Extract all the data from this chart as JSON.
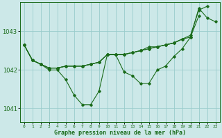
{
  "title": "Graphe pression niveau de la mer (hPa)",
  "background_color": "#cce8e8",
  "grid_color": "#99cccc",
  "line_color": "#1a6b1a",
  "xlim": [
    -0.5,
    23.5
  ],
  "ylim": [
    1040.65,
    1043.75
  ],
  "yticks": [
    1041,
    1042,
    1043
  ],
  "ylabel_pad": 2,
  "series": [
    [
      1042.65,
      1042.25,
      1042.15,
      1042.0,
      1042.0,
      1041.75,
      1041.35,
      1041.1,
      1041.1,
      1041.45,
      1042.4,
      1042.4,
      1041.95,
      1041.85,
      1041.65,
      1041.65,
      1042.0,
      1042.1,
      1042.35,
      1042.55,
      1042.85,
      1043.6,
      1043.35,
      1043.25
    ],
    [
      1042.65,
      1042.25,
      1042.15,
      1042.05,
      1042.05,
      1042.1,
      1042.1,
      1042.1,
      1042.15,
      1042.2,
      1042.4,
      1042.4,
      1042.4,
      1042.45,
      1042.5,
      1042.6,
      1042.6,
      1042.65,
      1042.7,
      1042.8,
      null,
      null,
      null,
      null
    ],
    [
      1042.65,
      1042.25,
      1042.15,
      1042.05,
      1042.05,
      1042.1,
      1042.1,
      1042.1,
      1042.15,
      1042.2,
      1042.4,
      1042.4,
      1042.4,
      1042.45,
      1042.5,
      1042.55,
      1042.6,
      1042.65,
      1042.7,
      1042.8,
      1042.85,
      1043.4,
      null,
      null
    ],
    [
      1042.65,
      1042.25,
      1042.15,
      1042.05,
      1042.05,
      1042.1,
      1042.1,
      1042.1,
      1042.15,
      1042.2,
      1042.4,
      1042.4,
      1042.4,
      1042.45,
      1042.5,
      1042.55,
      1042.6,
      1042.65,
      1042.7,
      1042.8,
      1042.9,
      1043.55,
      1043.65,
      null
    ]
  ]
}
